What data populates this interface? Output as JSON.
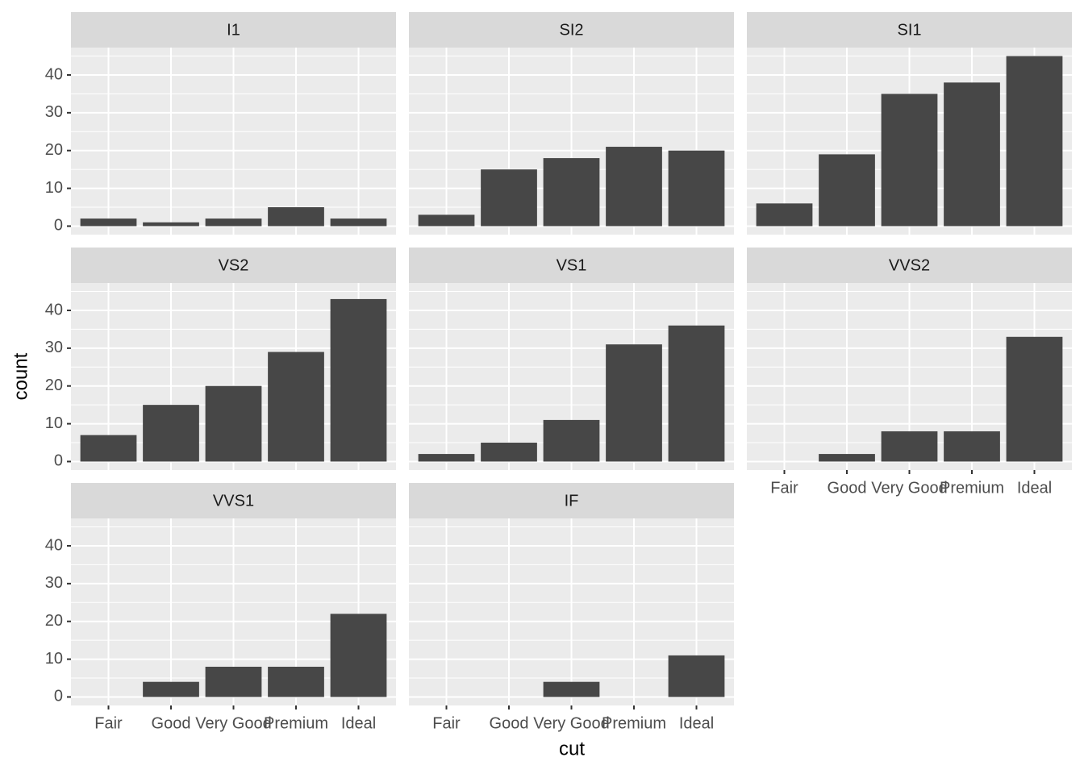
{
  "chart_data": {
    "type": "bar",
    "xlabel": "cut",
    "ylabel": "count",
    "categories": [
      "Fair",
      "Good",
      "Very Good",
      "Premium",
      "Ideal"
    ],
    "ylim": [
      -2.25,
      47.25
    ],
    "yticks": [
      0,
      10,
      20,
      30,
      40
    ],
    "yminor": [
      5,
      15,
      25,
      35,
      45
    ],
    "grid": true,
    "color": "#474747",
    "facets": [
      {
        "title": "I1",
        "values": [
          2,
          1,
          2,
          5,
          2
        ]
      },
      {
        "title": "SI2",
        "values": [
          3,
          15,
          18,
          21,
          20
        ]
      },
      {
        "title": "SI1",
        "values": [
          6,
          19,
          35,
          38,
          45
        ]
      },
      {
        "title": "VS2",
        "values": [
          7,
          15,
          20,
          29,
          43
        ]
      },
      {
        "title": "VS1",
        "values": [
          2,
          5,
          11,
          31,
          36
        ]
      },
      {
        "title": "VVS2",
        "values": [
          0,
          2,
          8,
          8,
          33
        ]
      },
      {
        "title": "VVS1",
        "values": [
          0,
          4,
          8,
          8,
          22
        ]
      },
      {
        "title": "IF",
        "values": [
          0,
          0,
          4,
          0,
          11
        ]
      }
    ]
  }
}
